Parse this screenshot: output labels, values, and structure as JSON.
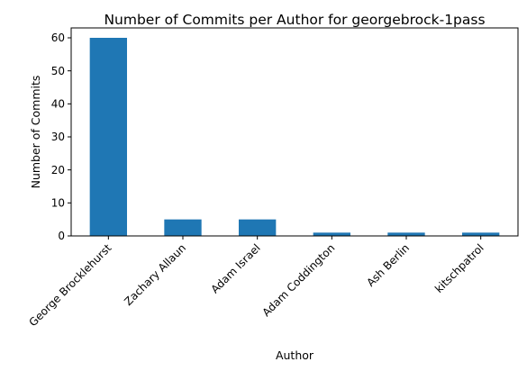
{
  "chart_data": {
    "type": "bar",
    "title": "Number of Commits per Author for georgebrock-1pass",
    "xlabel": "Author",
    "ylabel": "Number of Commits",
    "categories": [
      "George Brocklehurst",
      "Zachary Allaun",
      "Adam Israel",
      "Adam Coddington",
      "Ash Berlin",
      "kitschpatrol"
    ],
    "values": [
      60,
      5,
      5,
      1,
      1,
      1
    ],
    "ylim": [
      0,
      63
    ],
    "yticks": [
      0,
      10,
      20,
      30,
      40,
      50,
      60
    ],
    "grid": false,
    "legend": false,
    "bar_color": "#1f77b4"
  }
}
